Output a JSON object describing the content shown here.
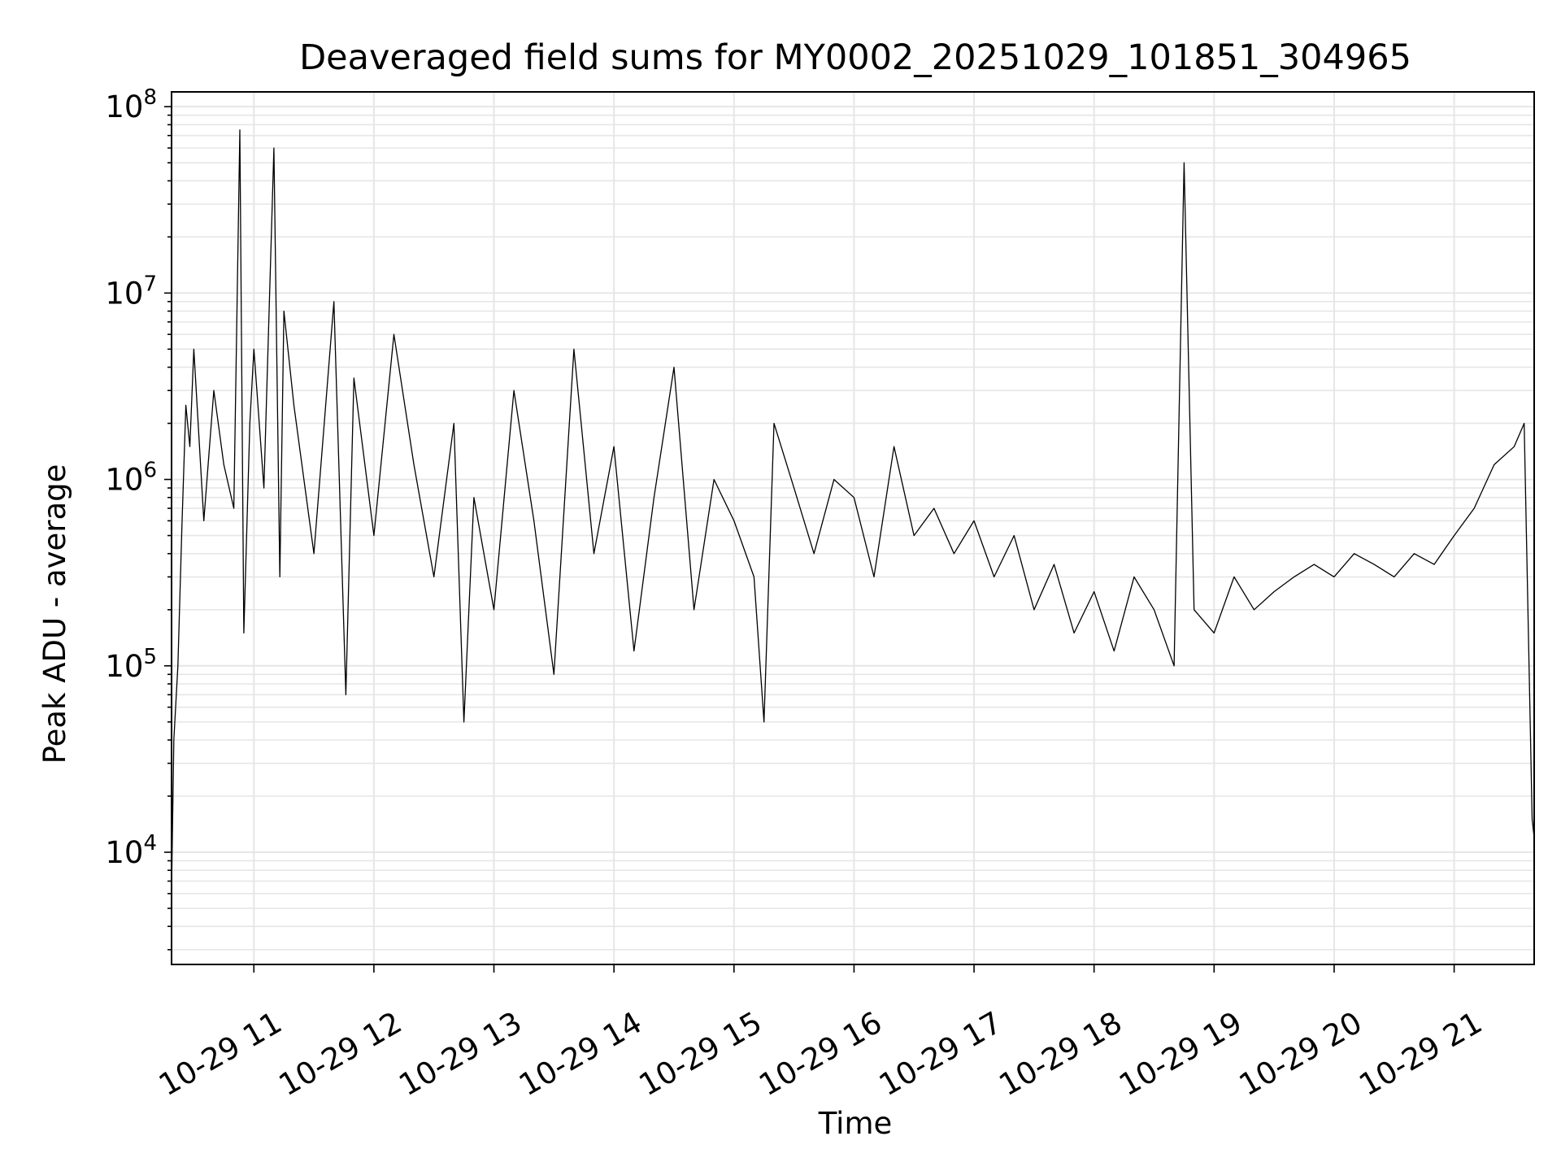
{
  "chart_data": {
    "type": "line",
    "title": "Deaveraged field sums for MY0002_20251029_101851_304965",
    "xlabel": "Time",
    "ylabel": "Peak ADU - average",
    "yscale": "log",
    "ylim": [
      2500,
      120000000
    ],
    "xlim": [
      "2025-10-29 10:18:51",
      "2025-10-29 21:40:00"
    ],
    "grid": true,
    "line_color": "#000000",
    "grid_color": "#e6e6e6",
    "x_tick_labels": [
      "10-29 11",
      "10-29 12",
      "10-29 13",
      "10-29 14",
      "10-29 15",
      "10-29 16",
      "10-29 17",
      "10-29 18",
      "10-29 19",
      "10-29 20",
      "10-29 21"
    ],
    "y_tick_labels": [
      {
        "base": "10",
        "exp": "4"
      },
      {
        "base": "10",
        "exp": "5"
      },
      {
        "base": "10",
        "exp": "6"
      },
      {
        "base": "10",
        "exp": "7"
      },
      {
        "base": "10",
        "exp": "8"
      }
    ],
    "series": [
      {
        "x": [
          "10:19",
          "10:20",
          "10:22",
          "10:24",
          "10:26",
          "10:28",
          "10:30",
          "10:35",
          "10:40",
          "10:45",
          "10:50",
          "10:53",
          "10:55",
          "10:58",
          "11:00",
          "11:05",
          "11:10",
          "11:13",
          "11:15",
          "11:20",
          "11:30",
          "11:40",
          "11:46",
          "11:50",
          "12:00",
          "12:10",
          "12:20",
          "12:30",
          "12:40",
          "12:45",
          "12:50",
          "13:00",
          "13:10",
          "13:20",
          "13:30",
          "13:40",
          "13:50",
          "14:00",
          "14:10",
          "14:20",
          "14:30",
          "14:40",
          "14:50",
          "15:00",
          "15:10",
          "15:15",
          "15:20",
          "15:30",
          "15:40",
          "15:50",
          "16:00",
          "16:10",
          "16:20",
          "16:30",
          "16:40",
          "16:50",
          "17:00",
          "17:10",
          "17:20",
          "17:30",
          "17:40",
          "17:50",
          "18:00",
          "18:10",
          "18:20",
          "18:30",
          "18:40",
          "18:45",
          "18:50",
          "19:00",
          "19:10",
          "19:20",
          "19:30",
          "19:40",
          "19:50",
          "20:00",
          "20:10",
          "20:20",
          "20:30",
          "20:40",
          "20:50",
          "21:00",
          "21:10",
          "21:20",
          "21:30",
          "21:35",
          "21:38",
          "21:39",
          "21:40"
        ],
        "y": [
          8000,
          40000,
          100000,
          550000,
          2500000,
          1500000,
          5000000,
          600000,
          3000000,
          1200000,
          700000,
          75000000,
          150000,
          2000000,
          5000000,
          900000,
          60000000,
          300000,
          8000000,
          2500000,
          400000,
          9000000,
          70000,
          3500000,
          500000,
          6000000,
          1200000,
          300000,
          2000000,
          50000,
          800000,
          200000,
          3000000,
          600000,
          90000,
          5000000,
          400000,
          1500000,
          120000,
          800000,
          4000000,
          200000,
          1000000,
          600000,
          300000,
          50000,
          2000000,
          900000,
          400000,
          1000000,
          800000,
          300000,
          1500000,
          500000,
          700000,
          400000,
          600000,
          300000,
          500000,
          200000,
          350000,
          150000,
          250000,
          120000,
          300000,
          200000,
          100000,
          50000000,
          200000,
          150000,
          300000,
          200000,
          250000,
          300000,
          350000,
          300000,
          400000,
          350000,
          300000,
          400000,
          350000,
          500000,
          700000,
          1200000,
          1500000,
          2000000,
          50000,
          15000,
          12000
        ]
      }
    ]
  }
}
